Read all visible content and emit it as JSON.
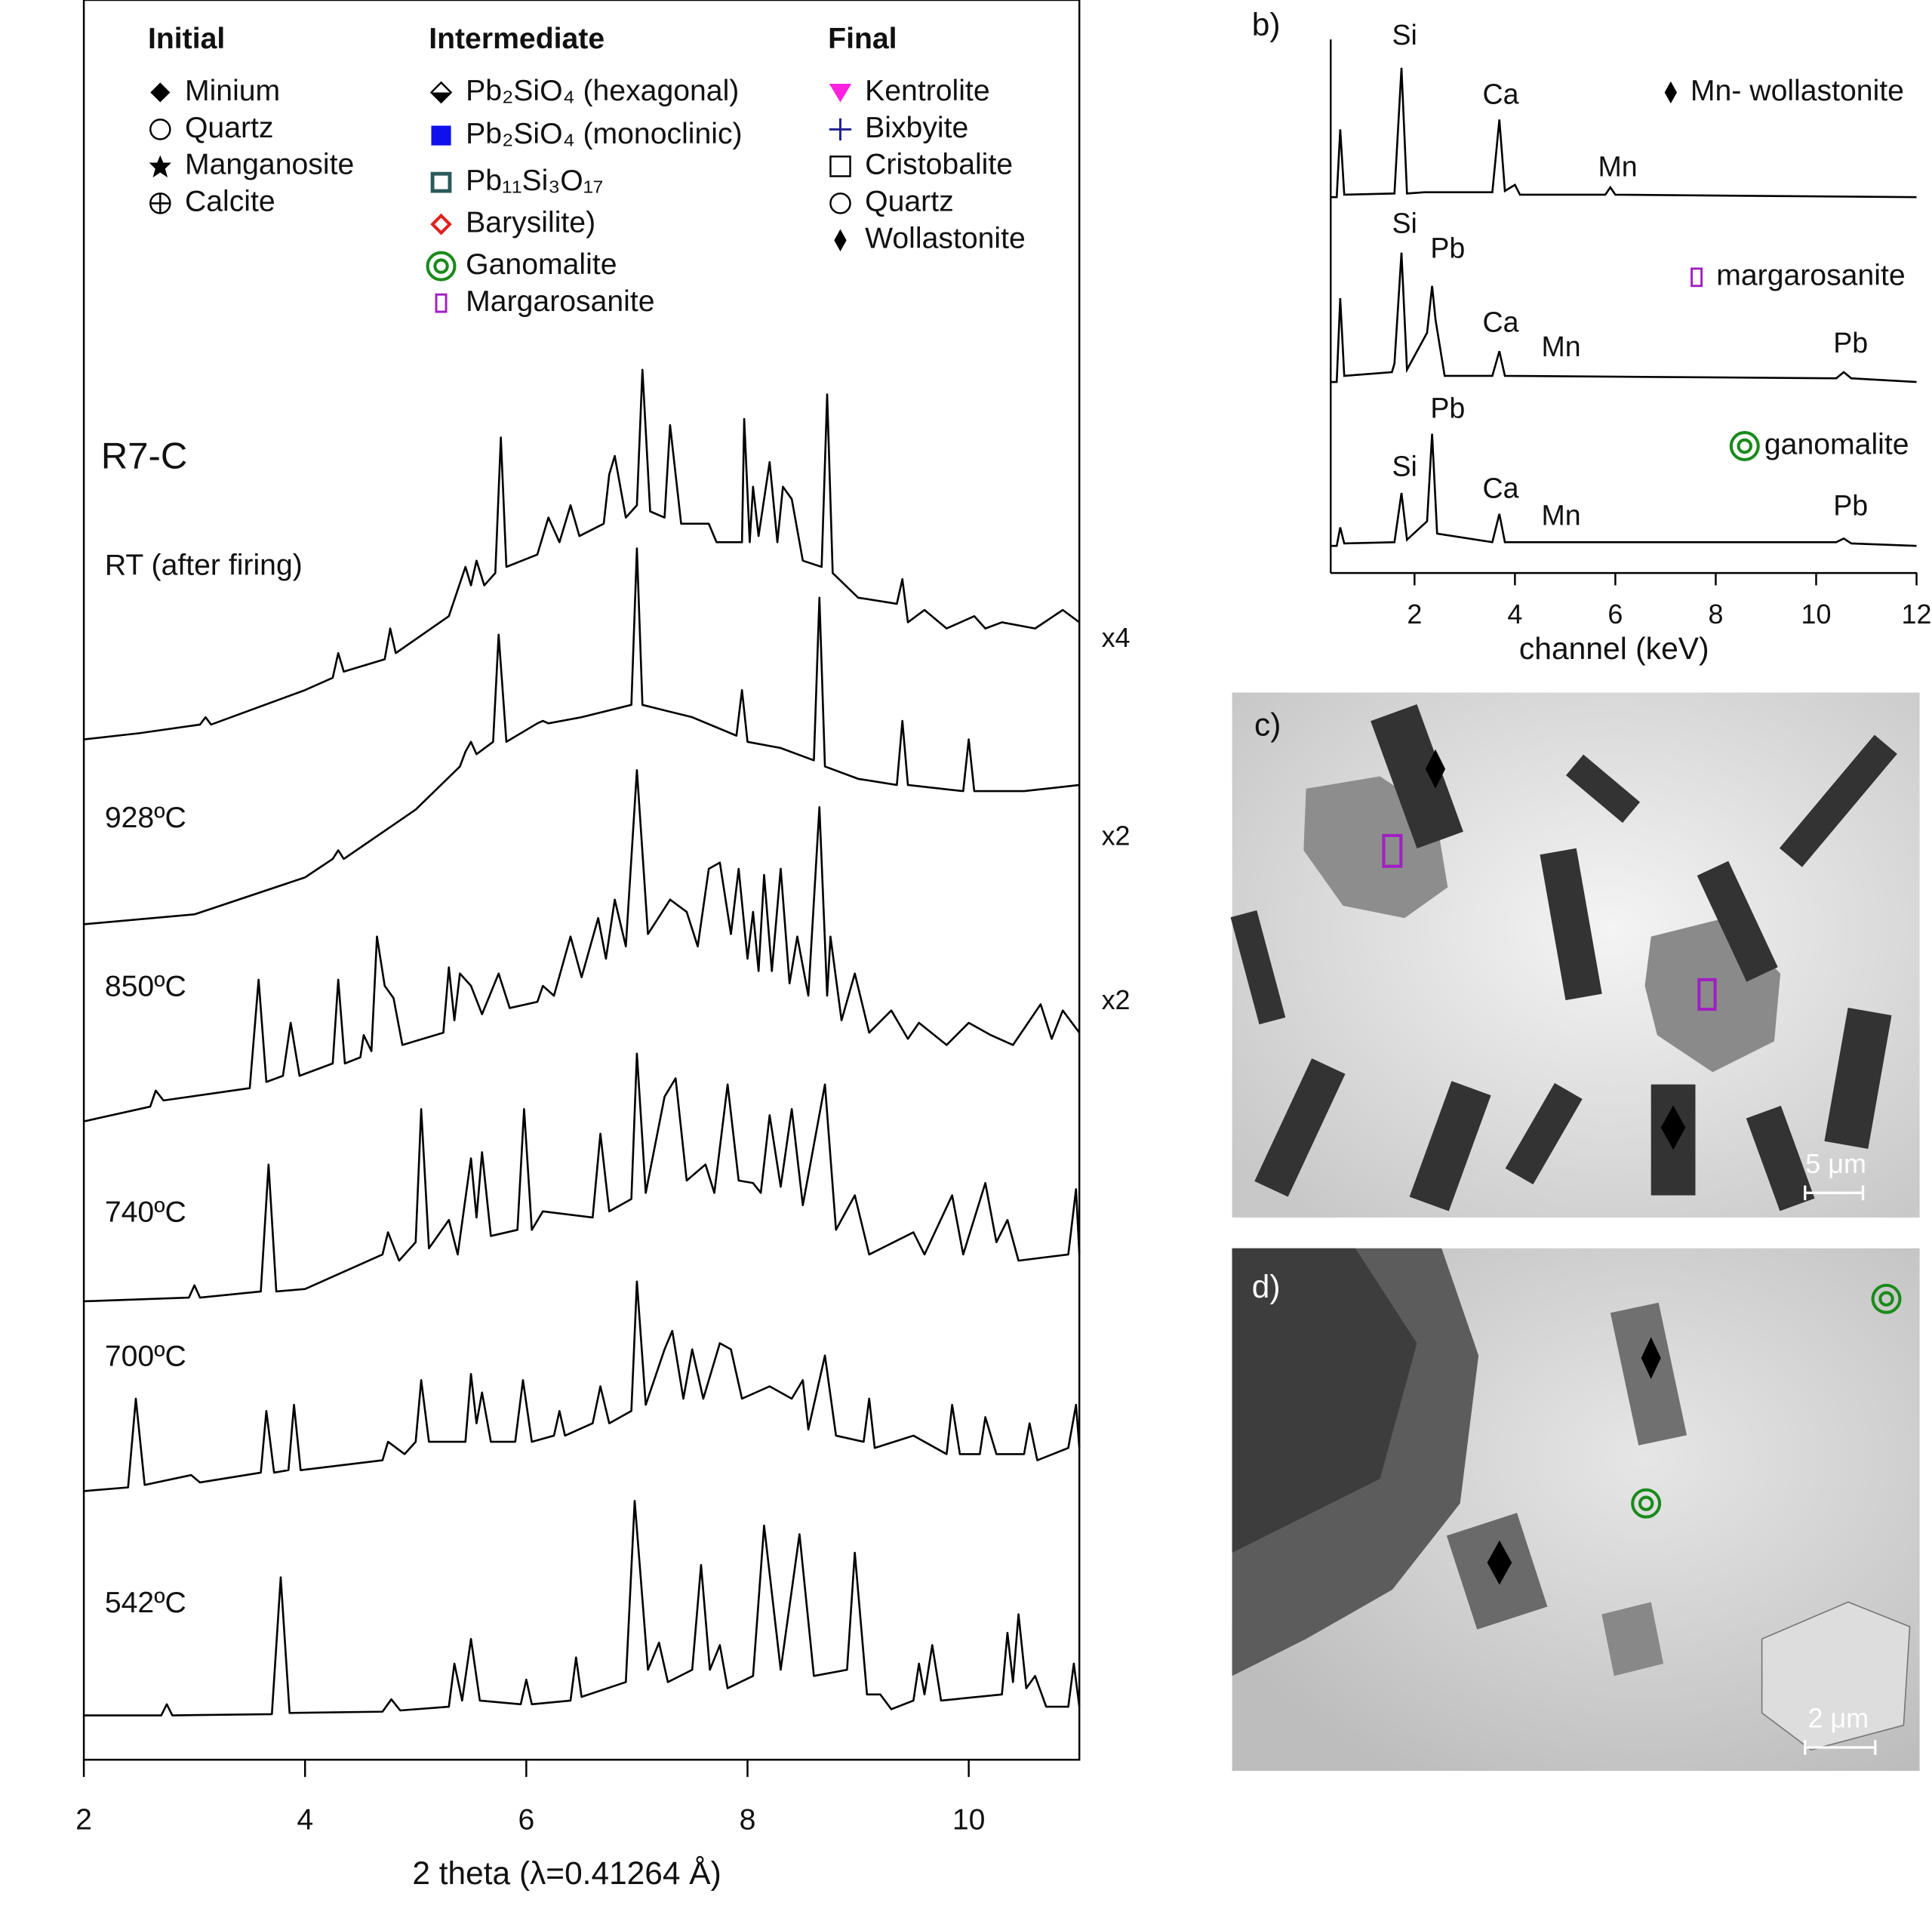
{
  "chart_data": [
    {
      "type": "line",
      "title": "R7-C",
      "xlabel": "2 theta (λ=0.41264 Å)",
      "xlim": [
        2,
        11
      ],
      "xticks": [
        2,
        4,
        6,
        8,
        10
      ],
      "color": "#000000",
      "legend": [
        {
          "title": "Initial",
          "items": [
            "Minium",
            "Quartz",
            "Manganosite",
            "Calcite"
          ]
        },
        {
          "title": "Intermediate",
          "items": [
            "Pb₂SiO₄ (hexagonal)",
            "Pb₂SiO₄ (monoclinic)",
            "Pb₁₁Si₃O₁₇",
            "Barysilite)",
            "Ganomalite",
            "Margarosanite"
          ]
        },
        {
          "title": "Final",
          "items": [
            "Kentrolite",
            "Bixbyite",
            "Cristobalite",
            "Quartz",
            "Wollastonite"
          ]
        }
      ],
      "series": [
        {
          "name": "RT (after firing)",
          "scale": "x4",
          "x": [
            2,
            2.5,
            3.05,
            3.1,
            3.15,
            4,
            4.25,
            4.3,
            4.35,
            4.72,
            4.77,
            4.82,
            5.3,
            5.45,
            5.5,
            5.55,
            5.62,
            5.72,
            5.77,
            5.82,
            6.1,
            6.2,
            6.3,
            6.4,
            6.48,
            6.7,
            6.75,
            6.8,
            6.9,
            7.0,
            7.05,
            7.12,
            7.25,
            7.3,
            7.4,
            7.65,
            7.72,
            7.95,
            7.97,
            8.02,
            8.05,
            8.1,
            8.2,
            8.27,
            8.32,
            8.4,
            8.5,
            8.67,
            8.72,
            8.77,
            9.0,
            9.35,
            9.4,
            9.45,
            9.6,
            9.8,
            10.05,
            10.15,
            10.3,
            10.6,
            10.85,
            11
          ],
          "values": [
            0,
            5,
            12,
            18,
            12,
            40,
            50,
            70,
            55,
            65,
            90,
            70,
            100,
            140,
            125,
            145,
            125,
            135,
            245,
            140,
            150,
            180,
            160,
            190,
            165,
            175,
            215,
            230,
            180,
            190,
            300,
            185,
            180,
            255,
            175,
            175,
            160,
            160,
            260,
            160,
            205,
            165,
            225,
            160,
            205,
            195,
            145,
            140,
            280,
            135,
            115,
            110,
            130,
            95,
            105,
            90,
            100,
            90,
            95,
            90,
            105,
            95
          ]
        },
        {
          "name": "928ºC",
          "scale": "x2",
          "x": [
            2,
            3,
            4,
            4.25,
            4.3,
            4.35,
            5,
            5.4,
            5.45,
            5.5,
            5.55,
            5.7,
            5.75,
            5.82,
            6.1,
            6.15,
            6.2,
            6.5,
            6.95,
            7.0,
            7.05,
            7.5,
            7.9,
            7.95,
            8.0,
            8.3,
            8.6,
            8.65,
            8.7,
            9.0,
            9.35,
            9.4,
            9.45,
            9.95,
            10.0,
            10.05,
            10.5,
            11
          ],
          "values": [
            2,
            10,
            40,
            55,
            62,
            55,
            95,
            130,
            142,
            150,
            140,
            150,
            237,
            150,
            165,
            167,
            165,
            170,
            180,
            307,
            180,
            170,
            155,
            192,
            150,
            145,
            135,
            267,
            130,
            120,
            115,
            167,
            115,
            110,
            152,
            110,
            110,
            115
          ]
        },
        {
          "name": "850ºC",
          "scale": "x2",
          "x": [
            2,
            2.6,
            2.65,
            2.72,
            3.5,
            3.58,
            3.65,
            3.8,
            3.87,
            3.95,
            4.25,
            4.3,
            4.36,
            4.5,
            4.53,
            4.6,
            4.65,
            4.72,
            4.8,
            4.88,
            5.25,
            5.3,
            5.35,
            5.4,
            5.5,
            5.6,
            5.75,
            5.85,
            6.1,
            6.15,
            6.25,
            6.4,
            6.5,
            6.65,
            6.72,
            6.8,
            6.9,
            7.0,
            7.1,
            7.3,
            7.45,
            7.55,
            7.65,
            7.75,
            7.85,
            7.92,
            8.0,
            8.05,
            8.1,
            8.15,
            8.22,
            8.3,
            8.38,
            8.45,
            8.55,
            8.65,
            8.72,
            8.75,
            8.85,
            8.97,
            9.1,
            9.3,
            9.45,
            9.55,
            9.8,
            10.0,
            10.2,
            10.4,
            10.65,
            10.75,
            10.85,
            11
          ],
          "values": [
            8,
            20,
            33,
            25,
            35,
            123,
            40,
            45,
            88,
            45,
            55,
            123,
            55,
            60,
            78,
            65,
            158,
            118,
            108,
            70,
            80,
            133,
            90,
            128,
            118,
            95,
            128,
            100,
            105,
            118,
            110,
            158,
            125,
            173,
            140,
            188,
            150,
            293,
            160,
            188,
            178,
            150,
            213,
            218,
            160,
            213,
            140,
            178,
            130,
            208,
            130,
            213,
            120,
            158,
            110,
            263,
            110,
            158,
            90,
            128,
            80,
            98,
            75,
            88,
            70,
            88,
            78,
            70,
            103,
            75,
            98,
            80
          ]
        },
        {
          "name": "740ºC",
          "x": [
            2,
            2.95,
            3.0,
            3.05,
            3.6,
            3.67,
            3.74,
            4.0,
            4.7,
            4.75,
            4.85,
            5.0,
            5.05,
            5.12,
            5.3,
            5.38,
            5.5,
            5.55,
            5.6,
            5.68,
            5.92,
            5.98,
            6.05,
            6.15,
            6.6,
            6.67,
            6.75,
            6.95,
            7.0,
            7.08,
            7.25,
            7.35,
            7.45,
            7.62,
            7.7,
            7.82,
            7.92,
            8.05,
            8.12,
            8.2,
            8.3,
            8.4,
            8.5,
            8.7,
            8.8,
            8.97,
            9.1,
            9.5,
            9.6,
            9.85,
            9.95,
            10.15,
            10.25,
            10.35,
            10.45,
            10.9,
            10.97,
            11
          ],
          "values": [
            2,
            5,
            15,
            5,
            10,
            113,
            10,
            12,
            40,
            58,
            35,
            50,
            158,
            45,
            68,
            40,
            118,
            70,
            123,
            55,
            60,
            158,
            60,
            75,
            70,
            138,
            75,
            85,
            203,
            90,
            168,
            183,
            100,
            113,
            90,
            178,
            100,
            98,
            90,
            153,
            95,
            158,
            80,
            178,
            60,
            88,
            40,
            58,
            40,
            88,
            40,
            98,
            50,
            68,
            35,
            40,
            93,
            40
          ]
        },
        {
          "name": "700ºC",
          "x": [
            2,
            2.4,
            2.47,
            2.55,
            2.97,
            3.05,
            3.6,
            3.65,
            3.72,
            3.85,
            3.9,
            3.96,
            4.7,
            4.75,
            4.9,
            5.0,
            5.05,
            5.12,
            5.45,
            5.5,
            5.55,
            5.6,
            5.68,
            5.9,
            5.97,
            6.05,
            6.25,
            6.3,
            6.35,
            6.6,
            6.67,
            6.75,
            6.95,
            7.0,
            7.08,
            7.25,
            7.32,
            7.42,
            7.5,
            7.6,
            7.75,
            7.85,
            7.95,
            8.2,
            8.4,
            8.5,
            8.55,
            8.7,
            8.8,
            9.05,
            9.1,
            9.15,
            9.5,
            9.8,
            9.85,
            9.92,
            10.1,
            10.15,
            10.25,
            10.5,
            10.55,
            10.62,
            10.9,
            10.97,
            11
          ],
          "values": [
            5,
            8,
            80,
            10,
            18,
            12,
            20,
            70,
            20,
            22,
            75,
            22,
            30,
            45,
            35,
            45,
            95,
            45,
            45,
            100,
            60,
            85,
            45,
            45,
            95,
            45,
            50,
            70,
            50,
            60,
            90,
            60,
            70,
            175,
            75,
            120,
            135,
            80,
            120,
            80,
            125,
            120,
            80,
            90,
            80,
            95,
            55,
            115,
            50,
            45,
            80,
            40,
            50,
            35,
            75,
            35,
            35,
            65,
            35,
            35,
            60,
            30,
            40,
            75,
            40
          ]
        },
        {
          "name": "542ºC",
          "x": [
            2,
            2.7,
            2.75,
            2.8,
            3.7,
            3.78,
            3.86,
            4.7,
            4.78,
            4.86,
            5.3,
            5.35,
            5.42,
            5.5,
            5.58,
            5.95,
            6.0,
            6.05,
            6.4,
            6.45,
            6.5,
            6.9,
            6.98,
            7.1,
            7.2,
            7.28,
            7.5,
            7.58,
            7.66,
            7.75,
            7.82,
            8.05,
            8.15,
            8.3,
            8.47,
            8.6,
            8.9,
            8.97,
            9.08,
            9.2,
            9.3,
            9.5,
            9.55,
            9.6,
            9.67,
            9.75,
            10.3,
            10.35,
            10.4,
            10.45,
            10.52,
            10.6,
            10.7,
            10.9,
            10.95,
            11
          ],
          "values": [
            3,
            3,
            12,
            3,
            4,
            115,
            5,
            6,
            16,
            7,
            10,
            45,
            15,
            65,
            15,
            12,
            32,
            12,
            15,
            50,
            18,
            30,
            177,
            40,
            62,
            30,
            40,
            125,
            40,
            60,
            25,
            35,
            157,
            40,
            150,
            35,
            40,
            135,
            20,
            20,
            8,
            15,
            45,
            20,
            60,
            15,
            20,
            70,
            30,
            85,
            25,
            35,
            10,
            10,
            45,
            10
          ]
        }
      ]
    },
    {
      "type": "line",
      "panel": "b)",
      "xlabel": "channel (keV)",
      "xlim": [
        0.33,
        12
      ],
      "xticks": [
        2,
        4,
        6,
        8,
        10,
        12
      ],
      "color": "#000000",
      "series": [
        {
          "name": "Mn- wollastonite",
          "annotations": [
            "Si",
            "Ca",
            "Mn"
          ],
          "x": [
            0.33,
            0.45,
            0.52,
            0.6,
            1.6,
            1.74,
            1.85,
            2.2,
            3.55,
            3.69,
            3.8,
            4.0,
            4.1,
            5.8,
            5.9,
            6.0,
            12
          ],
          "values": [
            0,
            0,
            55,
            2,
            3,
            105,
            3,
            4,
            4,
            63,
            5,
            10,
            2,
            2,
            8,
            2,
            0
          ]
        },
        {
          "name": "margarosanite",
          "annotations": [
            "Si",
            "Pb",
            "Ca",
            "Mn",
            "Pb"
          ],
          "x": [
            0.33,
            0.45,
            0.52,
            0.6,
            1.55,
            1.6,
            1.74,
            1.85,
            2.25,
            2.35,
            2.42,
            2.6,
            3.55,
            3.69,
            3.8,
            10.4,
            10.55,
            10.7,
            12
          ],
          "values": [
            0,
            0,
            68,
            5,
            8,
            15,
            105,
            10,
            40,
            78,
            50,
            5,
            5,
            25,
            5,
            3,
            8,
            3,
            0
          ]
        },
        {
          "name": "ganomalite",
          "annotations": [
            "Pb",
            "Si",
            "Ca",
            "Mn",
            "Pb"
          ],
          "x": [
            0.33,
            0.45,
            0.52,
            0.6,
            1.6,
            1.74,
            1.85,
            2.25,
            2.35,
            2.45,
            3.55,
            3.69,
            3.8,
            10.4,
            10.55,
            10.7,
            12
          ],
          "values": [
            0,
            0,
            15,
            2,
            3,
            43,
            5,
            20,
            91,
            10,
            3,
            26,
            3,
            3,
            6,
            2,
            0
          ]
        }
      ]
    }
  ],
  "images": [
    {
      "label": "c)",
      "scale_bar": "5 μm"
    },
    {
      "label": "d)",
      "scale_bar": "2 μm"
    }
  ]
}
